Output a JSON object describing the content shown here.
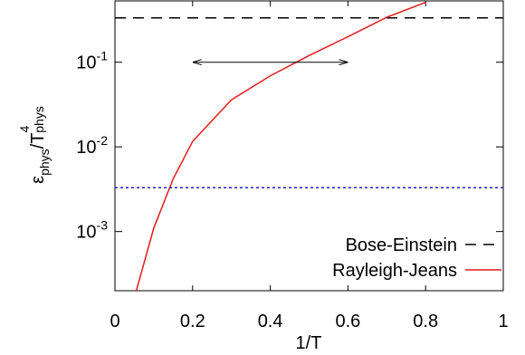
{
  "chart_data": {
    "type": "line",
    "xlabel": "1/T",
    "ylabel": "εphys/T4phys",
    "xlim": [
      0,
      1
    ],
    "xticks": [
      0,
      0.2,
      0.4,
      0.6,
      0.8,
      1
    ],
    "ylim": [
      0.0002,
      0.53
    ],
    "yscale": "log",
    "yticks": [
      {
        "value": 0.001,
        "label": "10-3"
      },
      {
        "value": 0.01,
        "label": "10-2"
      },
      {
        "value": 0.1,
        "label": "10-1"
      }
    ],
    "legend": "lower right",
    "series": [
      {
        "name": "Bose-Einstein",
        "color": "#000000",
        "dash": "12,8",
        "x": [
          0,
          1
        ],
        "values": [
          0.334,
          0.334
        ]
      },
      {
        "name": "Rayleigh-Jeans",
        "color": "#e41a1c",
        "dash": "none",
        "x": [
          0.055,
          0.1,
          0.15,
          0.2,
          0.3,
          0.4,
          0.5,
          0.6,
          0.7,
          0.8
        ],
        "values": [
          0.0002,
          0.0011,
          0.0042,
          0.0116,
          0.036,
          0.069,
          0.12,
          0.2,
          0.34,
          0.51
        ]
      },
      {
        "color": "#1f1fc8",
        "dash": "3,3",
        "x": [
          0,
          1
        ],
        "values": [
          0.0033,
          0.0033
        ]
      }
    ],
    "arrow": {
      "x": [
        0.2,
        0.6
      ],
      "y": 0.1
    }
  }
}
